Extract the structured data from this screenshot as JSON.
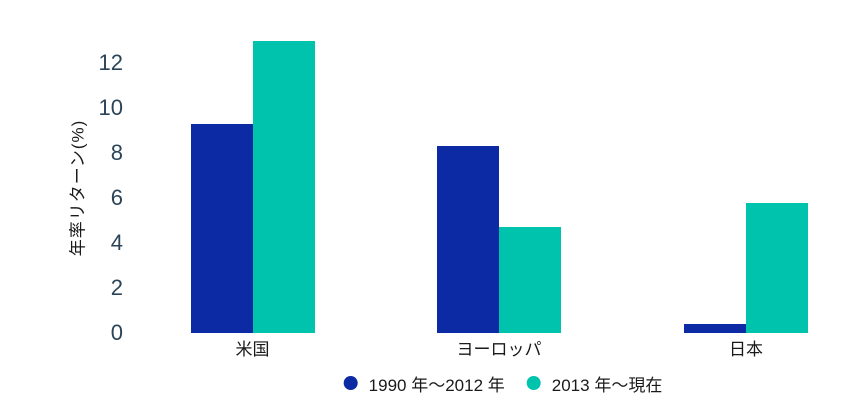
{
  "chart_data": {
    "type": "bar",
    "title": "",
    "xlabel": "",
    "ylabel": "年率リターン(%)",
    "categories": [
      "米国",
      "ヨーロッパ",
      "日本"
    ],
    "series": [
      {
        "name": "1990 年〜2012 年",
        "color": "#0b2aa3",
        "values": [
          9.3,
          8.3,
          0.4
        ]
      },
      {
        "name": "2013 年〜現在",
        "color": "#00c3ad",
        "values": [
          13.0,
          4.7,
          5.8
        ]
      }
    ],
    "yticks": [
      0,
      2,
      4,
      6,
      8,
      10,
      12
    ],
    "ylim": [
      0,
      13
    ],
    "grid": false,
    "axis_lines": false,
    "legend_position": "bottom",
    "tick_color": "#2b4458",
    "text_color": "#1a1a1a",
    "background_color": "#ffffff"
  }
}
